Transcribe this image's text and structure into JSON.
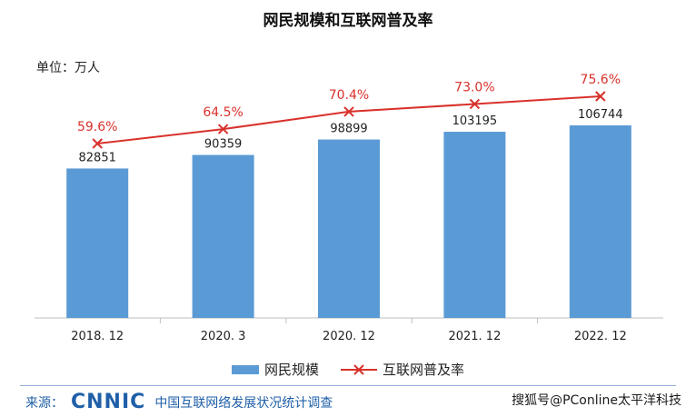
{
  "title": "网民规模和互联网普及率",
  "unit": "单位：万人",
  "chart_data": {
    "type": "bar",
    "categories": [
      "2018.12",
      "2020.3",
      "2020.12",
      "2021.12",
      "2022.12"
    ],
    "series": [
      {
        "name": "网民规模",
        "type": "bar",
        "values": [
          82851,
          90359,
          98899,
          103195,
          106744
        ],
        "color": "#5b9bd5"
      },
      {
        "name": "互联网普及率",
        "type": "line",
        "values": [
          59.6,
          64.5,
          70.4,
          73.0,
          75.6
        ],
        "labels": [
          "59.6%",
          "64.5%",
          "70.4%",
          "73.0%",
          "75.6%"
        ],
        "color": "#d9312b"
      }
    ],
    "bar_labels": [
      "82851",
      "90359",
      "98899",
      "103195",
      "106744"
    ],
    "tick_labels": [
      "2018. 12",
      "2020. 3",
      "2020. 12",
      "2021. 12",
      "2022. 12"
    ]
  },
  "footer": {
    "source_label": "来源：",
    "logo_text": "CNNIC",
    "source_name": "中国互联网络发展状况统计调查",
    "credit": "搜狐号@PConline太平洋科技"
  }
}
